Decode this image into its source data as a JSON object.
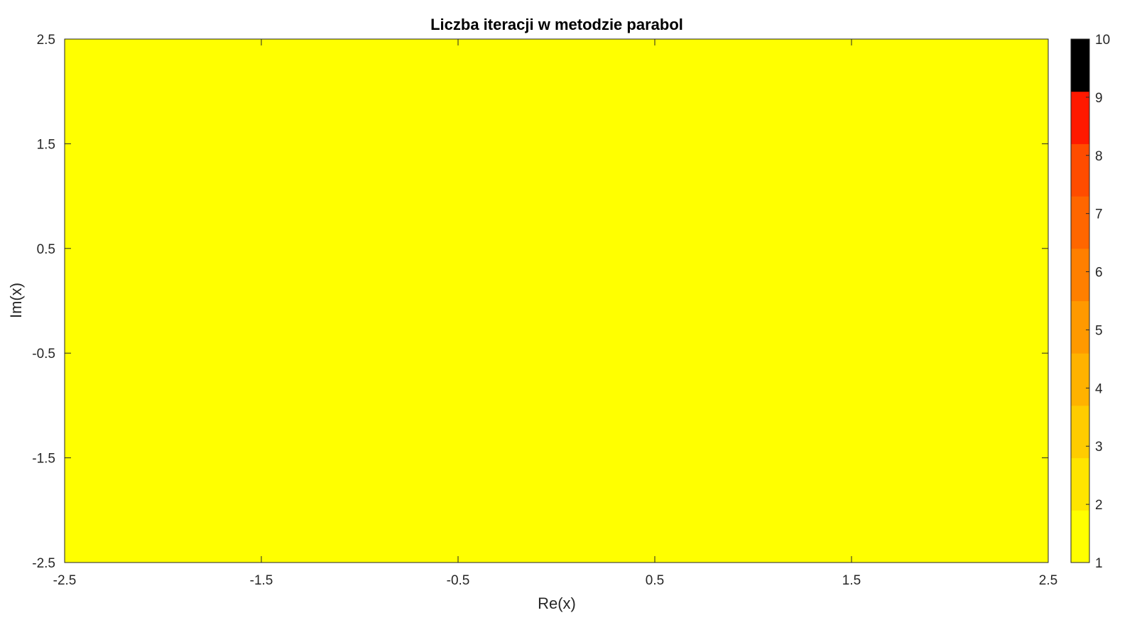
{
  "chart_data": {
    "type": "heatmap",
    "title": "Liczba iteracji w metodzie parabol",
    "xlabel": "Re(x)",
    "ylabel": "Im(x)",
    "xlim": [
      -2.5,
      2.5
    ],
    "ylim": [
      -2.5,
      2.5
    ],
    "x_ticks": [
      "-2.5",
      "-1.5",
      "-0.5",
      "0.5",
      "1.5",
      "2.5"
    ],
    "y_ticks": [
      "-2.5",
      "-1.5",
      "-0.5",
      "0.5",
      "1.5",
      "2.5"
    ],
    "x_tick_values": [
      -2.5,
      -1.5,
      -0.5,
      0.5,
      1.5,
      2.5
    ],
    "y_tick_values": [
      -2.5,
      -1.5,
      -0.5,
      0.5,
      1.5,
      2.5
    ],
    "grid": false,
    "fill_value": 1,
    "fill_color": "#ffff00",
    "colorbar": {
      "range": [
        1,
        10
      ],
      "ticks": [
        "1",
        "2",
        "3",
        "4",
        "5",
        "6",
        "7",
        "8",
        "9",
        "10"
      ],
      "tick_values": [
        1,
        2,
        3,
        4,
        5,
        6,
        7,
        8,
        9,
        10
      ],
      "colors": [
        "#ffff00",
        "#ffe500",
        "#ffcc00",
        "#ffb200",
        "#ff9900",
        "#ff7f00",
        "#ff6600",
        "#ff4c00",
        "#ff1900",
        "#000000"
      ]
    }
  }
}
